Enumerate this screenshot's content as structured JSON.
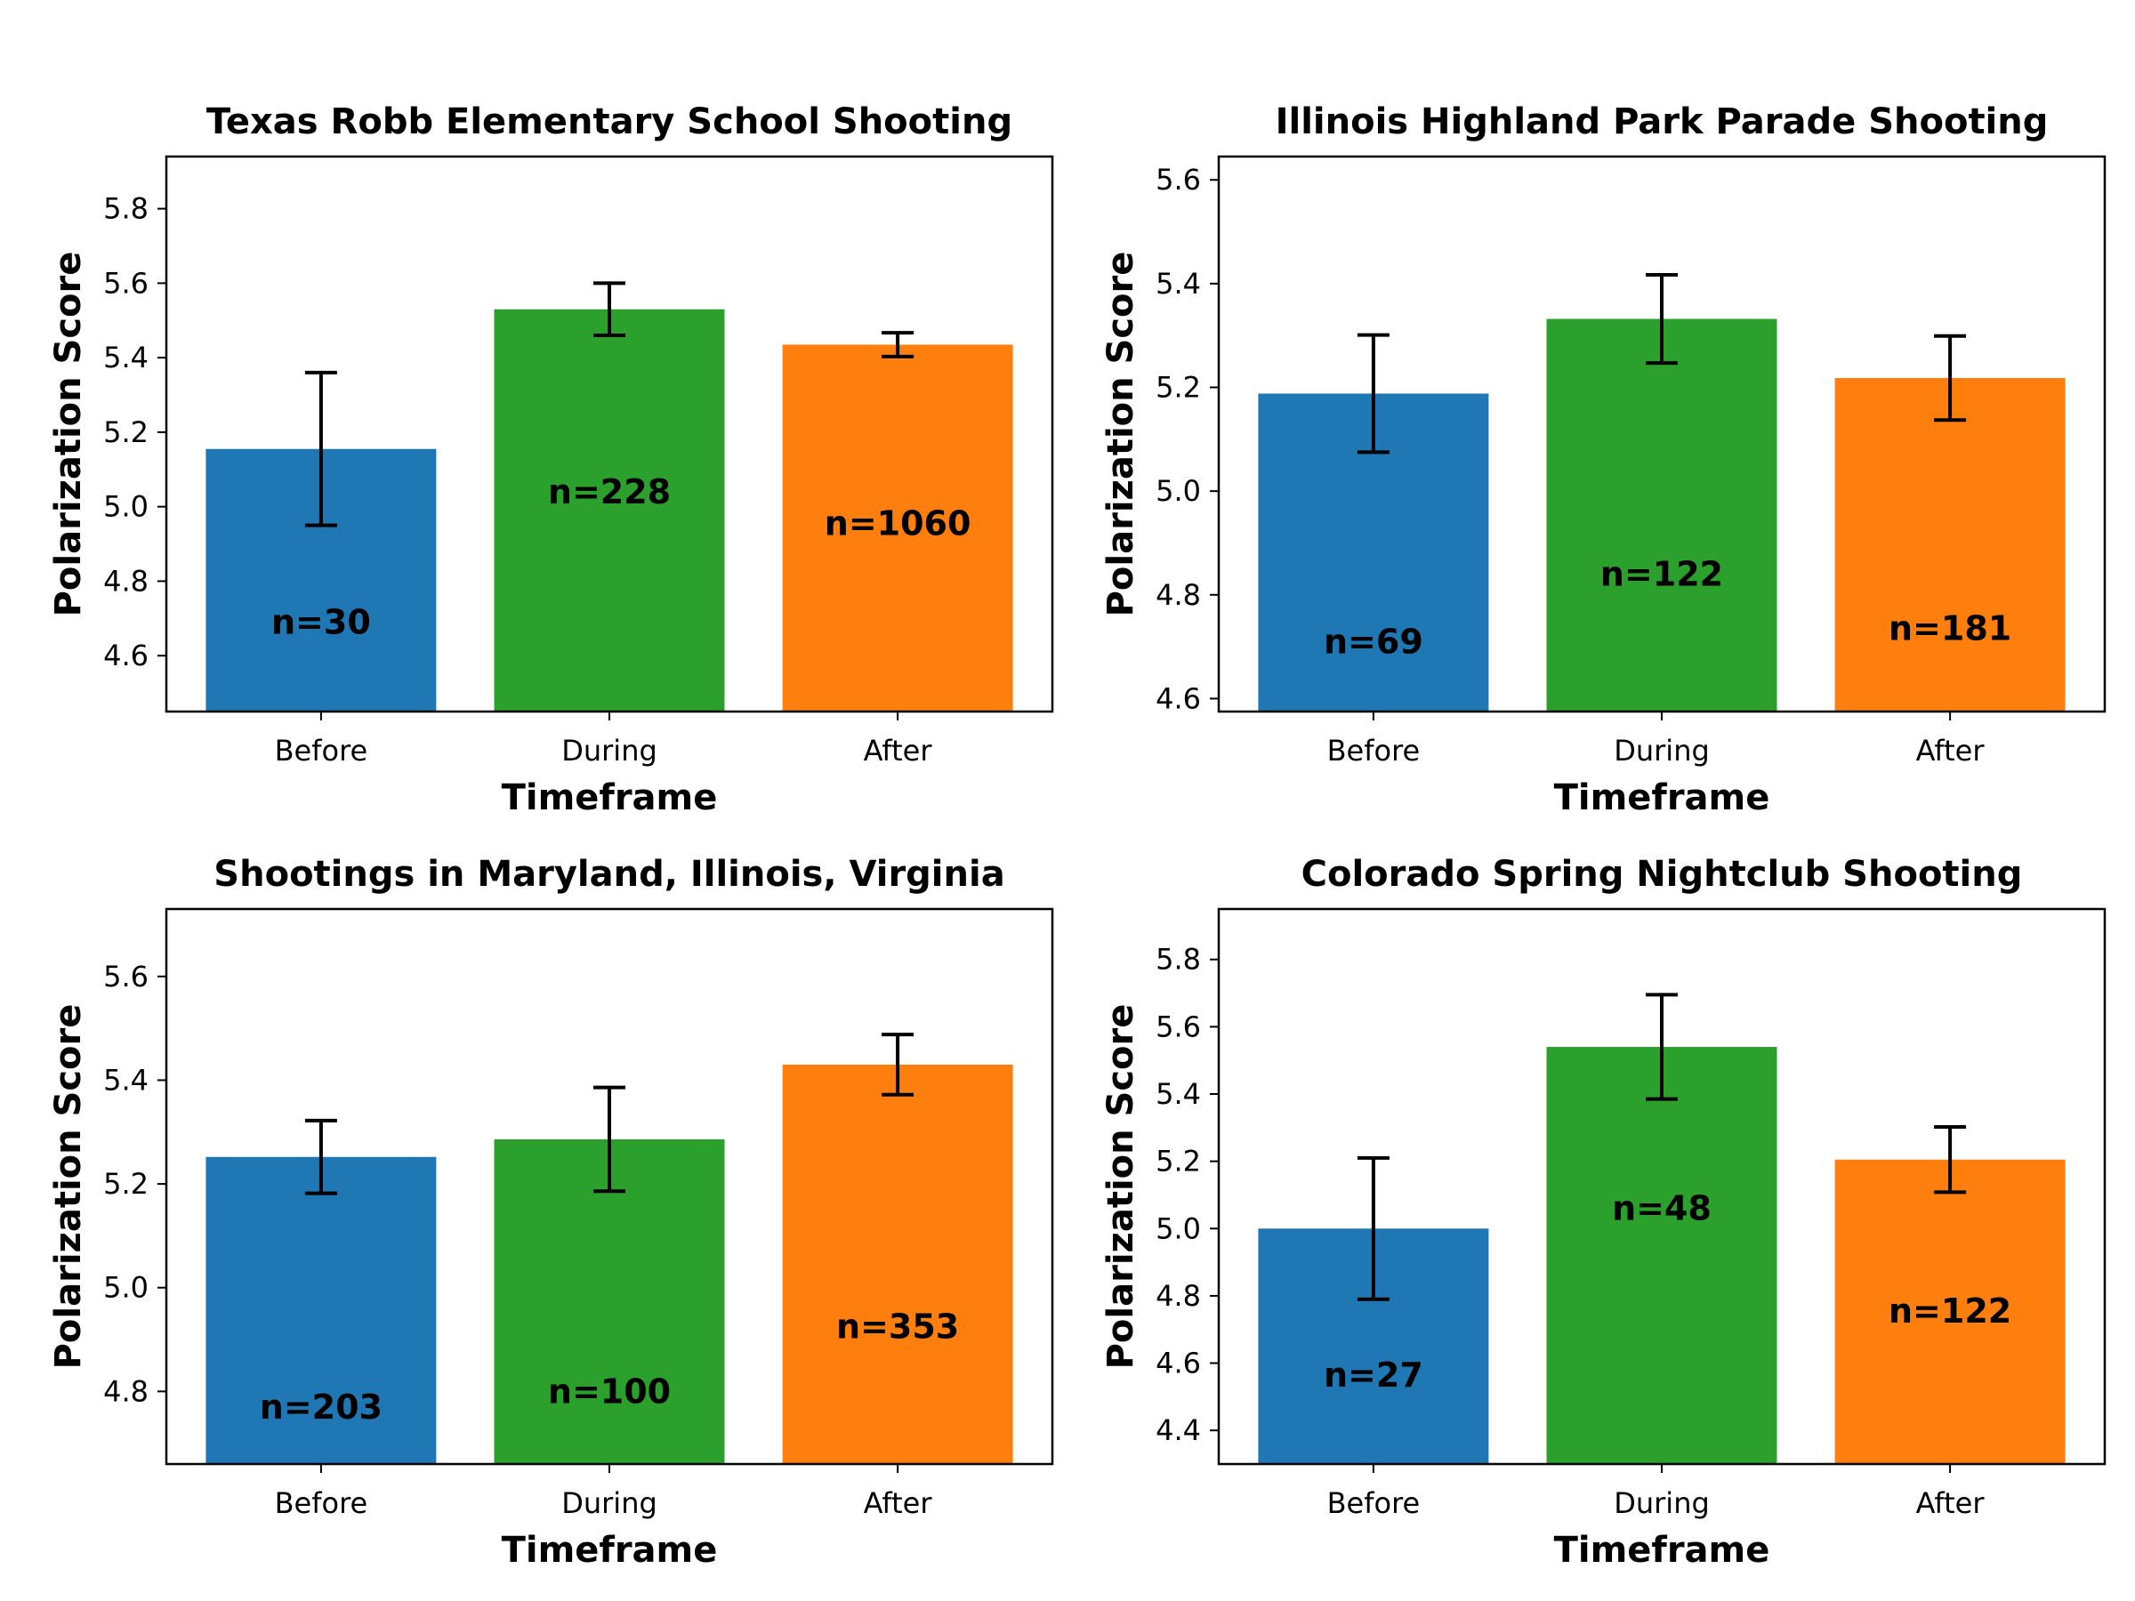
{
  "chart_data": [
    {
      "type": "bar",
      "title": "Texas Robb Elementary School Shooting",
      "xlabel": "Timeframe",
      "ylabel": "Polarization Score",
      "categories": [
        "Before",
        "During",
        "After"
      ],
      "values": [
        5.155,
        5.53,
        5.435
      ],
      "errors": [
        0.205,
        0.07,
        0.032
      ],
      "labels": [
        "n=30",
        "n=228",
        "n=1060"
      ],
      "label_values": [
        4.69,
        5.04,
        4.955
      ],
      "colors": [
        "#1f77b4",
        "#2ca02c",
        "#ff7f0e"
      ],
      "ylim": [
        4.45,
        5.94
      ],
      "yticks": [
        4.6,
        4.8,
        5.0,
        5.2,
        5.4,
        5.6,
        5.8
      ],
      "grid": false
    },
    {
      "type": "bar",
      "title": "Illinois Highland Park Parade Shooting",
      "xlabel": "Timeframe",
      "ylabel": "Polarization Score",
      "categories": [
        "Before",
        "During",
        "After"
      ],
      "values": [
        5.188,
        5.332,
        5.218
      ],
      "errors": [
        0.113,
        0.085,
        0.081
      ],
      "labels": [
        "n=69",
        "n=122",
        "n=181"
      ],
      "label_values": [
        4.71,
        4.84,
        4.735
      ],
      "colors": [
        "#1f77b4",
        "#2ca02c",
        "#ff7f0e"
      ],
      "ylim": [
        4.575,
        5.645
      ],
      "yticks": [
        4.6,
        4.8,
        5.0,
        5.2,
        5.4,
        5.6
      ],
      "grid": false
    },
    {
      "type": "bar",
      "title": "Shootings in Maryland, Illinois, Virginia",
      "xlabel": "Timeframe",
      "ylabel": "Polarization Score",
      "categories": [
        "Before",
        "During",
        "After"
      ],
      "values": [
        5.252,
        5.286,
        5.43
      ],
      "errors": [
        0.07,
        0.1,
        0.058
      ],
      "labels": [
        "n=203",
        "n=100",
        "n=353"
      ],
      "label_values": [
        4.77,
        4.8,
        4.925
      ],
      "colors": [
        "#1f77b4",
        "#2ca02c",
        "#ff7f0e"
      ],
      "ylim": [
        4.66,
        5.73
      ],
      "yticks": [
        4.8,
        5.0,
        5.2,
        5.4,
        5.6
      ],
      "grid": false
    },
    {
      "type": "bar",
      "title": "Colorado Spring Nightclub Shooting",
      "xlabel": "Timeframe",
      "ylabel": "Polarization Score",
      "categories": [
        "Before",
        "During",
        "After"
      ],
      "values": [
        5.0,
        5.54,
        5.205
      ],
      "errors": [
        0.21,
        0.155,
        0.097
      ],
      "labels": [
        "n=27",
        "n=48",
        "n=122"
      ],
      "label_values": [
        4.565,
        5.06,
        4.755
      ],
      "colors": [
        "#1f77b4",
        "#2ca02c",
        "#ff7f0e"
      ],
      "ylim": [
        4.3,
        5.95
      ],
      "yticks": [
        4.4,
        4.6,
        4.8,
        5.0,
        5.2,
        5.4,
        5.6,
        5.8
      ],
      "grid": false
    }
  ]
}
